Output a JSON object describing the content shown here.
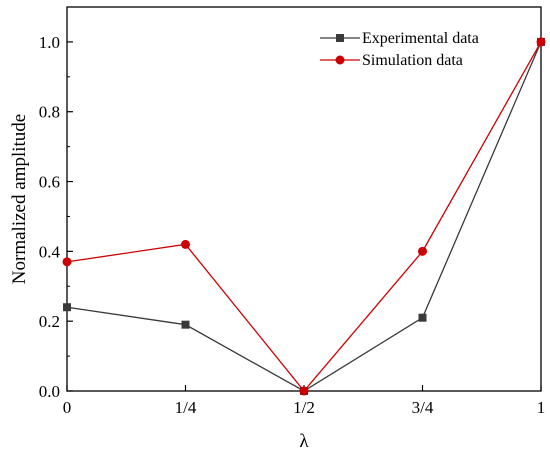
{
  "chart_data": {
    "type": "line",
    "xlabel": "λ",
    "ylabel": "Normalized amplitude",
    "categories": [
      "0",
      "1/4",
      "1/2",
      "3/4",
      "1"
    ],
    "x": [
      0,
      0.25,
      0.5,
      0.75,
      1
    ],
    "xlim": [
      0,
      1
    ],
    "ylim": [
      0,
      1.1
    ],
    "yticks": [
      0.0,
      0.2,
      0.4,
      0.6,
      0.8,
      1.0
    ],
    "ytick_labels": [
      "0.0",
      "0.2",
      "0.4",
      "0.6",
      "0.8",
      "1.0"
    ],
    "grid": false,
    "legend_position": "top-right",
    "series": [
      {
        "name": "Experimental data",
        "values": [
          0.24,
          0.19,
          0.0,
          0.21,
          1.0
        ],
        "color": "#3a3a3a",
        "marker": "square"
      },
      {
        "name": "Simulation data",
        "values": [
          0.37,
          0.42,
          0.0,
          0.4,
          1.0
        ],
        "color": "#cc0000",
        "marker": "circle"
      }
    ]
  }
}
